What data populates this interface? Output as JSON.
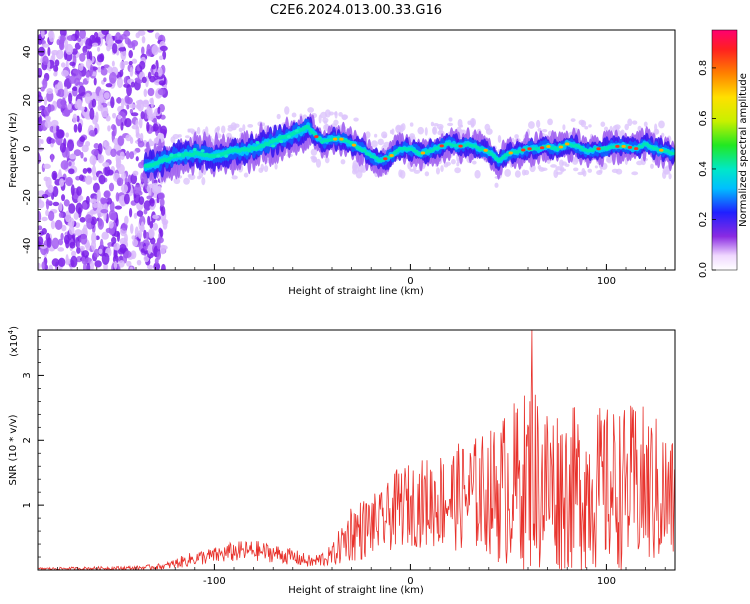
{
  "title": "C2E6.2024.013.00.33.G16",
  "chart_data": [
    {
      "type": "heatmap",
      "xlabel": "Height of straight line (km)",
      "ylabel": "Frequency (Hz)",
      "xlim": [
        -190,
        135
      ],
      "ylim": [
        -50,
        49
      ],
      "xticks": [
        -100,
        0,
        100
      ],
      "yticks": [
        -40,
        -20,
        0,
        20,
        40
      ],
      "colorbar": {
        "label": "Normalized spectral amplitude",
        "range": [
          0,
          0.95
        ],
        "ticks": [
          0.0,
          0.2,
          0.4,
          0.6,
          0.8
        ]
      },
      "ridge": {
        "x": [
          -133,
          -120,
          -110,
          -100,
          -90,
          -80,
          -70,
          -60,
          -52,
          -48,
          -45,
          -40,
          -35,
          -30,
          -25,
          -20,
          -15,
          -10,
          -5,
          0,
          5,
          10,
          15,
          20,
          25,
          30,
          35,
          40,
          45,
          50,
          55,
          60,
          65,
          70,
          75,
          80,
          85,
          90,
          95,
          100,
          105,
          110,
          115,
          120,
          125,
          130,
          135
        ],
        "frequency": [
          -7,
          -3,
          -2,
          -3,
          -1,
          0,
          3,
          6,
          9,
          5,
          3,
          4,
          4,
          2,
          0,
          -3,
          -5,
          -3,
          0,
          0,
          -2,
          -1,
          1,
          2,
          1,
          2,
          0,
          -1,
          -5,
          -2,
          -1,
          0,
          0,
          1,
          0,
          2,
          1,
          -1,
          0,
          0,
          1,
          1,
          0,
          2,
          0,
          -1,
          -2
        ]
      },
      "noise_region": [
        -190,
        -125
      ]
    },
    {
      "type": "line",
      "xlabel": "Height of straight line (km)",
      "ylabel": "SNR (10 * v/v)",
      "exponent_label": "(x10",
      "exponent_sup": "4",
      "exponent_close": ")",
      "xlim": [
        -190,
        135
      ],
      "ylim": [
        0,
        3.7
      ],
      "xticks": [
        -100,
        0,
        100
      ],
      "yticks": [
        1,
        2,
        3
      ],
      "color": "#e8312b",
      "envelope": {
        "x": [
          -190,
          -140,
          -125,
          -120,
          -110,
          -100,
          -90,
          -80,
          -70,
          -60,
          -50,
          -40,
          -35,
          -30,
          -25,
          -20,
          -15,
          -10,
          -5,
          0,
          10,
          20,
          30,
          40,
          45,
          50,
          55,
          60,
          62,
          65,
          70,
          80,
          90,
          100,
          110,
          115,
          120,
          125,
          130,
          135
        ],
        "mean": [
          0.02,
          0.03,
          0.06,
          0.1,
          0.18,
          0.22,
          0.28,
          0.3,
          0.26,
          0.2,
          0.12,
          0.22,
          0.4,
          0.6,
          0.62,
          0.7,
          0.72,
          0.85,
          1.0,
          1.0,
          1.05,
          1.1,
          1.15,
          1.2,
          1.2,
          1.3,
          1.35,
          1.4,
          1.5,
          1.35,
          1.3,
          1.25,
          1.25,
          1.25,
          1.25,
          1.3,
          1.25,
          1.2,
          1.1,
          1.05
        ],
        "spread": [
          0.01,
          0.02,
          0.03,
          0.05,
          0.07,
          0.08,
          0.1,
          0.1,
          0.09,
          0.08,
          0.06,
          0.1,
          0.2,
          0.3,
          0.3,
          0.3,
          0.3,
          0.35,
          0.4,
          0.4,
          0.45,
          0.5,
          0.55,
          0.6,
          0.7,
          0.8,
          0.8,
          0.9,
          1.0,
          0.9,
          0.85,
          0.8,
          0.8,
          0.8,
          0.8,
          0.8,
          0.8,
          0.75,
          0.7,
          0.6
        ]
      },
      "peak": {
        "x": 62,
        "y": 3.7
      }
    }
  ]
}
